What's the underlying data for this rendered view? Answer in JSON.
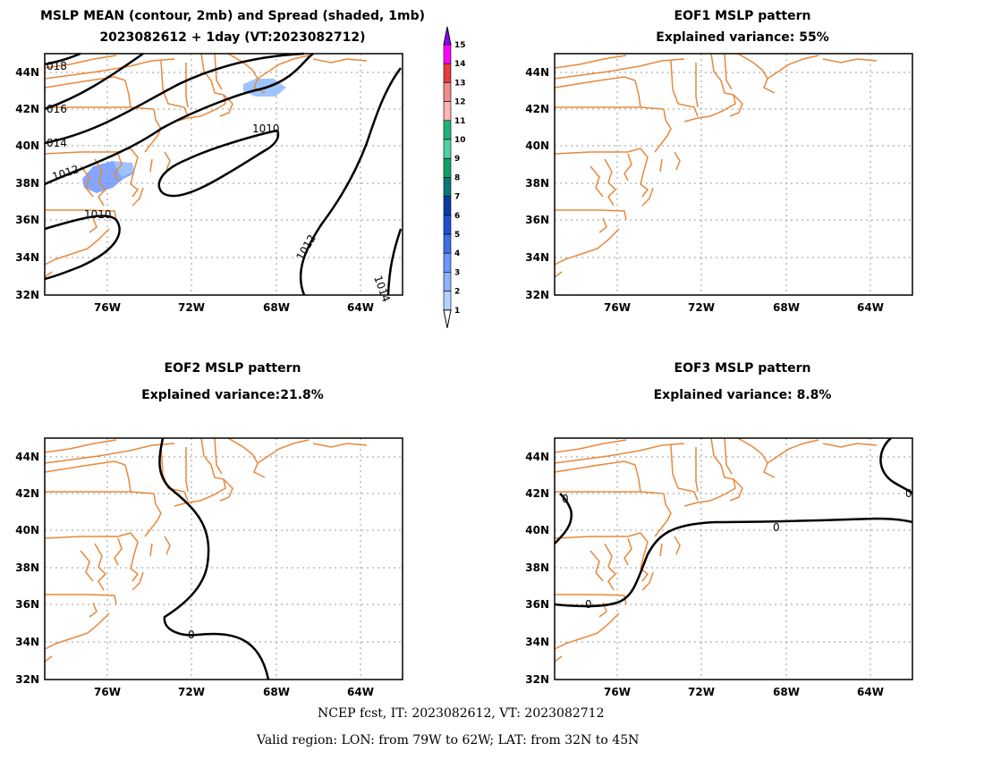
{
  "panels": [
    {
      "id": "mean",
      "title_line1": "MSLP MEAN (contour, 2mb) and Spread (shaded, 1mb)",
      "title_line2": "2023082612 + 1day (VT:2023082712)",
      "contour_labels": [
        "018",
        "016",
        "014",
        "1012",
        "1010",
        "1010",
        "1012",
        "1014"
      ]
    },
    {
      "id": "eof1",
      "title_line1": "EOF1 MSLP pattern",
      "title_line2": "Explained variance: 55%"
    },
    {
      "id": "eof2",
      "title_line1": "EOF2 MSLP pattern",
      "title_line2": "Explained variance:21.8%",
      "contour_labels": [
        "0"
      ]
    },
    {
      "id": "eof3",
      "title_line1": "EOF3 MSLP pattern",
      "title_line2": "Explained variance: 8.8%",
      "contour_labels": [
        "0",
        "0",
        "0",
        "0"
      ]
    }
  ],
  "axes": {
    "lon_ticks": [
      "76W",
      "72W",
      "68W",
      "64W"
    ],
    "lat_ticks": [
      "44N",
      "42N",
      "40N",
      "38N",
      "36N",
      "34N",
      "32N"
    ]
  },
  "colorbar": {
    "levels": [
      "1",
      "2",
      "3",
      "4",
      "5",
      "6",
      "7",
      "8",
      "9",
      "10",
      "11",
      "12",
      "13",
      "14",
      "15"
    ],
    "colors": [
      "#b4d2ff",
      "#8cb4ff",
      "#6e96ff",
      "#3c6ee6",
      "#1e50d2",
      "#0a3ca0",
      "#0a7878",
      "#14a064",
      "#50d2a0",
      "#1eb478",
      "#ffb4b4",
      "#f08c8c",
      "#e63c3c",
      "#ff00ff",
      "#8c00ff"
    ]
  },
  "footer": {
    "line1": "NCEP fcst, IT: 2023082612, VT: 2023082712",
    "line2": "Valid region: LON: from 79W to 62W; LAT: from 32N to 45N"
  }
}
